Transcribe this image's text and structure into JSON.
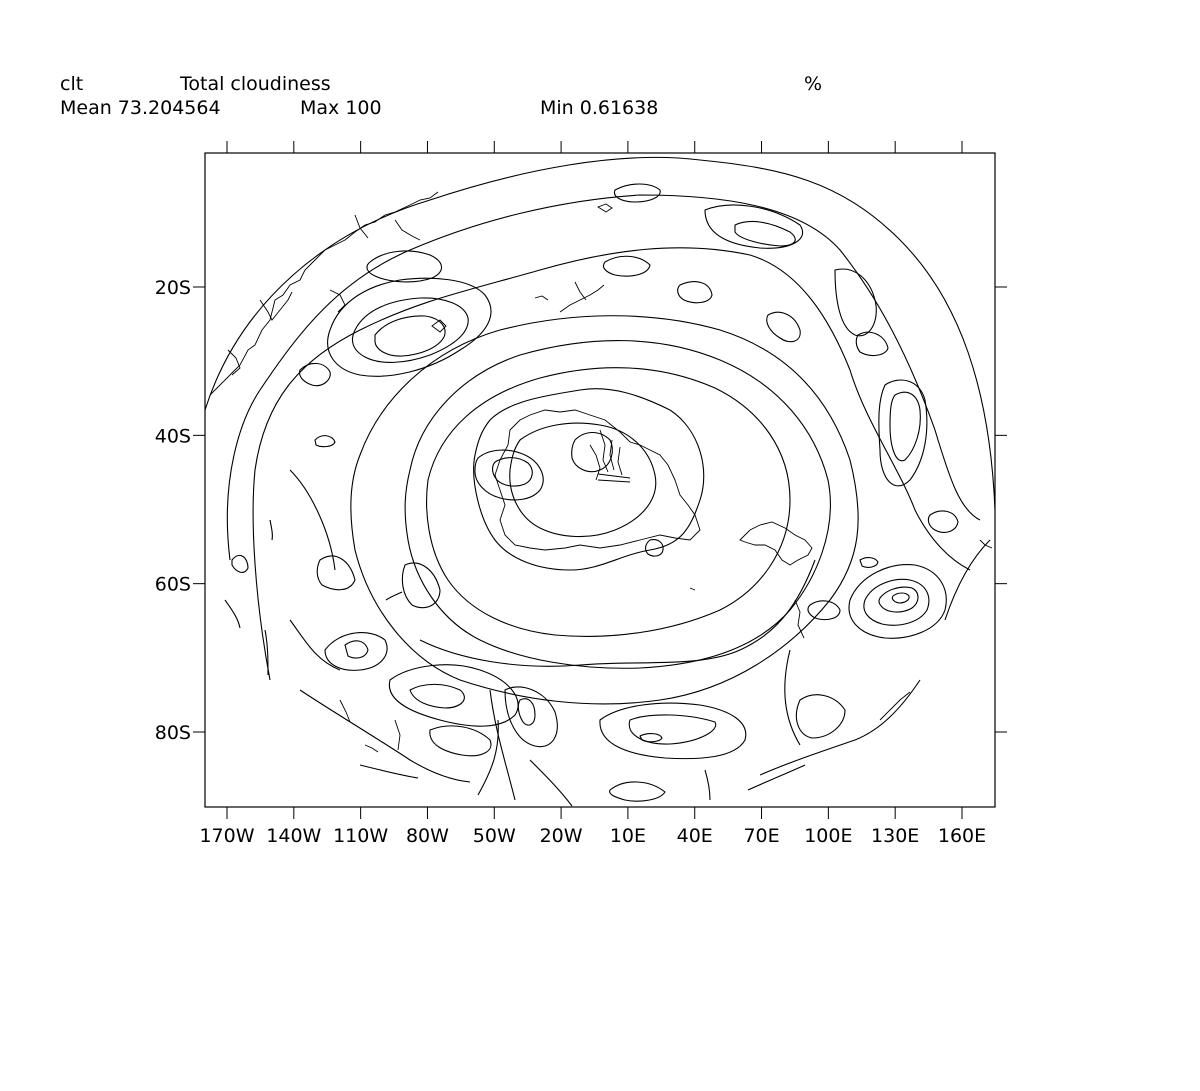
{
  "header": {
    "variable": "clt",
    "long_name": "Total cloudiness",
    "units": "%",
    "mean_label": "Mean 73.204564",
    "max_label": "Max 100",
    "min_label": "Min 0.61638"
  },
  "chart_data": {
    "type": "contour",
    "title": "Total cloudiness",
    "variable": "clt",
    "units": "%",
    "stats": {
      "mean": 73.204564,
      "max": 100,
      "min": 0.61638
    },
    "projection": "polar stereographic (south pole)",
    "x_ticks": [
      {
        "lon": -170,
        "label": "170W"
      },
      {
        "lon": -140,
        "label": "140W"
      },
      {
        "lon": -110,
        "label": "110W"
      },
      {
        "lon": -80,
        "label": "80W"
      },
      {
        "lon": -50,
        "label": "50W"
      },
      {
        "lon": -20,
        "label": "20W"
      },
      {
        "lon": 10,
        "label": "10E"
      },
      {
        "lon": 40,
        "label": "40E"
      },
      {
        "lon": 70,
        "label": "70E"
      },
      {
        "lon": 100,
        "label": "100E"
      },
      {
        "lon": 130,
        "label": "130E"
      },
      {
        "lon": 160,
        "label": "160E"
      }
    ],
    "y_ticks": [
      {
        "lat": -20,
        "label": "20S"
      },
      {
        "lat": -40,
        "label": "40S"
      },
      {
        "lat": -60,
        "label": "60S"
      },
      {
        "lat": -80,
        "label": "80S"
      }
    ],
    "grid": false,
    "legend": "none",
    "line_color": "#000000",
    "background": "#ffffff"
  }
}
